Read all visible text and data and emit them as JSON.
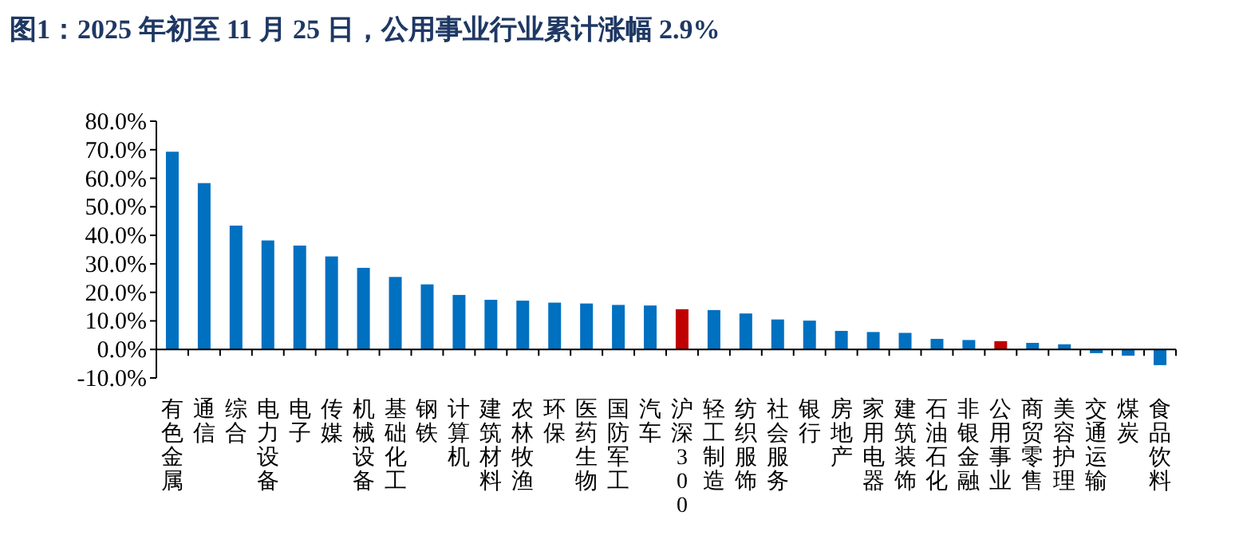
{
  "chart_data": {
    "type": "bar",
    "title": "图1：2025 年初至 11 月 25 日，公用事业行业累计涨幅 2.9%",
    "categories": [
      "有色金属",
      "通信",
      "综合",
      "电力设备",
      "电子",
      "传媒",
      "机械设备",
      "基础化工",
      "钢铁",
      "计算机",
      "建筑材料",
      "农林牧渔",
      "环保",
      "医药生物",
      "国防军工",
      "汽车",
      "沪深300",
      "轻工制造",
      "纺织服饰",
      "社会服务",
      "银行",
      "房地产",
      "家用电器",
      "建筑装饰",
      "石油石化",
      "非银金融",
      "公用事业",
      "商贸零售",
      "美容护理",
      "交通运输",
      "煤炭",
      "食品饮料"
    ],
    "values": [
      69.3,
      58.3,
      43.4,
      38.2,
      36.4,
      32.6,
      28.6,
      25.4,
      22.8,
      19.1,
      17.4,
      17.1,
      16.4,
      16.1,
      15.6,
      15.4,
      14.1,
      13.8,
      12.6,
      10.5,
      10.1,
      6.5,
      6.1,
      5.8,
      3.7,
      3.3,
      2.9,
      2.3,
      1.8,
      -1.3,
      -2.2,
      -5.5
    ],
    "colors": [
      "#0070c0",
      "#0070c0",
      "#0070c0",
      "#0070c0",
      "#0070c0",
      "#0070c0",
      "#0070c0",
      "#0070c0",
      "#0070c0",
      "#0070c0",
      "#0070c0",
      "#0070c0",
      "#0070c0",
      "#0070c0",
      "#0070c0",
      "#0070c0",
      "#c00000",
      "#0070c0",
      "#0070c0",
      "#0070c0",
      "#0070c0",
      "#0070c0",
      "#0070c0",
      "#0070c0",
      "#0070c0",
      "#0070c0",
      "#c00000",
      "#0070c0",
      "#0070c0",
      "#0070c0",
      "#0070c0",
      "#0070c0"
    ],
    "ylim": [
      -10,
      80
    ],
    "yticks": [
      {
        "value": -10,
        "label": "-10.0%"
      },
      {
        "value": 0,
        "label": "0.0%"
      },
      {
        "value": 10,
        "label": "10.0%"
      },
      {
        "value": 20,
        "label": "20.0%"
      },
      {
        "value": 30,
        "label": "30.0%"
      },
      {
        "value": 40,
        "label": "40.0%"
      },
      {
        "value": 50,
        "label": "50.0%"
      },
      {
        "value": 60,
        "label": "60.0%"
      },
      {
        "value": 70,
        "label": "70.0%"
      },
      {
        "value": 80,
        "label": "80.0%"
      }
    ],
    "grid": false
  }
}
